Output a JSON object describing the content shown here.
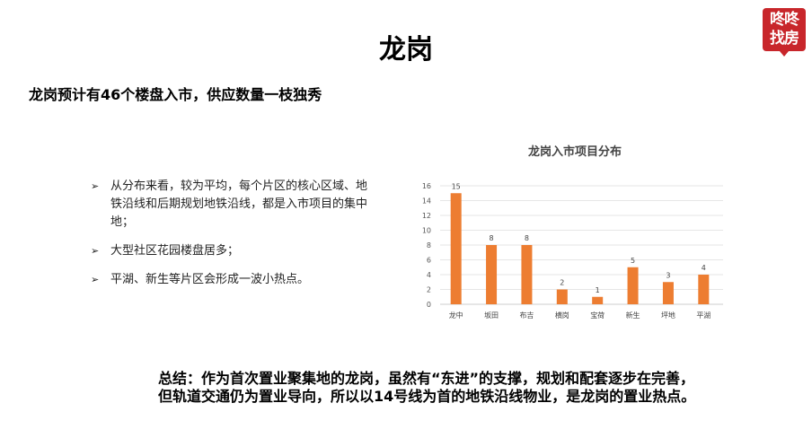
{
  "header": {
    "title": "龙岗",
    "logo_text": "咚咚找房"
  },
  "subtitle": "龙岗预计有46个楼盘入市，供应数量一枝独秀",
  "bullets": [
    "从分布来看，较为平均，每个片区的核心区域、地铁沿线和后期规划地铁沿线，都是入市项目的集中地；",
    "大型社区花园楼盘居多；",
    "平湖、新生等片区会形成一波小热点。"
  ],
  "bullet_icon": "arrow-bullet-icon",
  "summary": "总结：作为首次置业聚集地的龙岗，虽然有“东进”的支撑，规划和配套逐步在完善，但轨道交通仍为置业导向，所以以14号线为首的地铁沿线物业，是龙岗的置业热点。",
  "chart_data": {
    "type": "bar",
    "title": "龙岗入市项目分布",
    "categories": [
      "龙中",
      "坂田",
      "布吉",
      "横岗",
      "宝荷",
      "新生",
      "坪地",
      "平湖"
    ],
    "values": [
      15,
      8,
      8,
      2,
      1,
      5,
      3,
      4
    ],
    "ylim": [
      0,
      16
    ],
    "yticks": [
      "0",
      "2",
      "4",
      "6",
      "8",
      "10",
      "12",
      "14",
      "16"
    ],
    "grid": true,
    "legend": "none",
    "bar_color": "#ed7d31"
  }
}
